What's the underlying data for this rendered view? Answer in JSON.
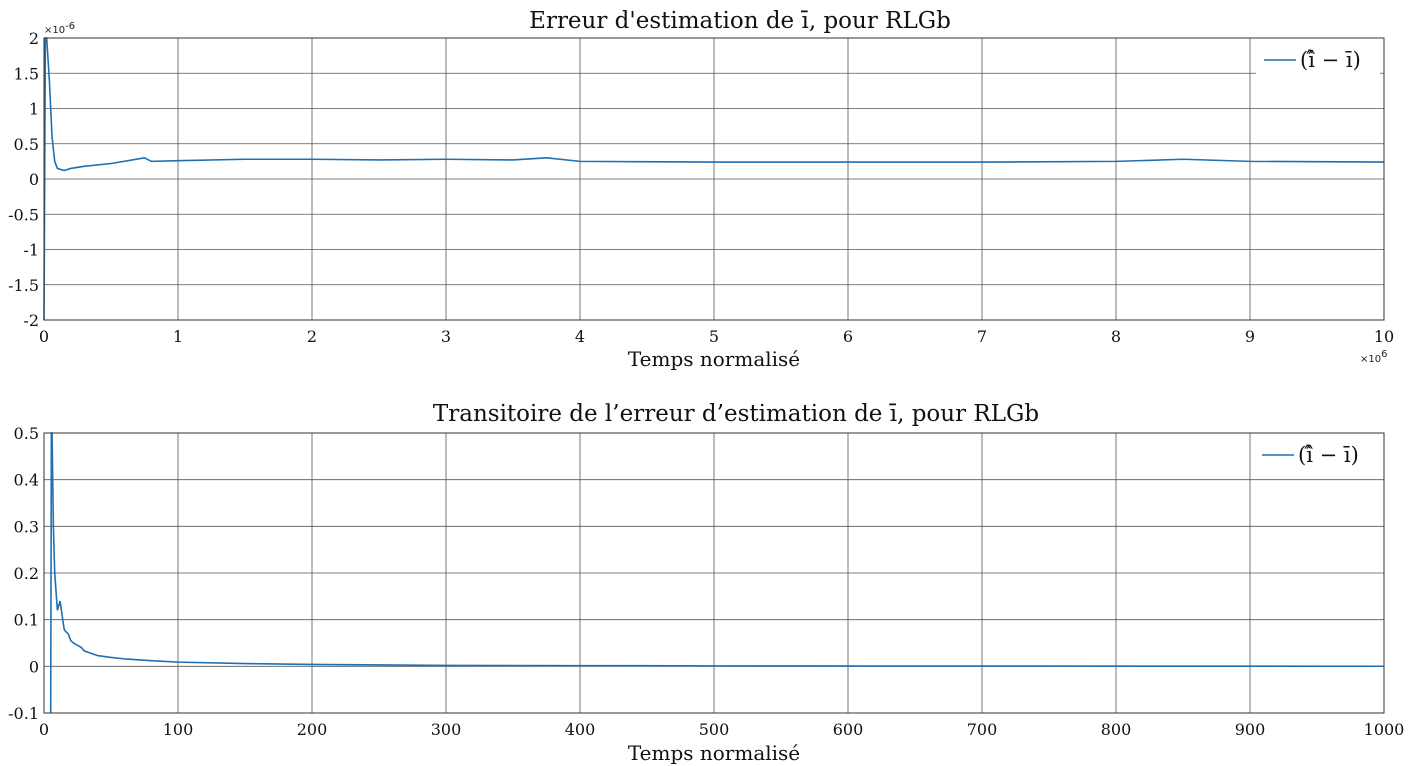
{
  "chart_data": [
    {
      "type": "line",
      "title": "Erreur d'estimation de ī, pour RLGb",
      "xlabel": "Temps normalisé",
      "ylabel": "",
      "x_exponent_label": "×10",
      "x_exponent_power": "6",
      "y_exponent_label": "×10",
      "y_exponent_power": "-6",
      "xlim": [
        0,
        10
      ],
      "ylim": [
        -2,
        2
      ],
      "xticks": [
        "0",
        "1",
        "2",
        "3",
        "4",
        "5",
        "6",
        "7",
        "8",
        "9",
        "10"
      ],
      "yticks": [
        "2",
        "1.5",
        "1",
        "0.5",
        "0",
        "-0.5",
        "-1",
        "-1.5",
        "-2"
      ],
      "grid": true,
      "legend": "top-right",
      "series": [
        {
          "name": "(î̂ − ī)",
          "color": "#1f6fb2",
          "x": [
            0,
            0.01,
            0.02,
            0.04,
            0.06,
            0.08,
            0.1,
            0.15,
            0.2,
            0.3,
            0.5,
            0.75,
            0.8,
            1,
            1.5,
            2,
            2.5,
            3,
            3.5,
            3.75,
            4,
            5,
            6,
            7,
            8,
            8.5,
            9,
            10
          ],
          "values": [
            -2,
            2,
            2,
            1.4,
            0.6,
            0.25,
            0.15,
            0.12,
            0.15,
            0.18,
            0.22,
            0.3,
            0.25,
            0.26,
            0.28,
            0.28,
            0.27,
            0.28,
            0.27,
            0.3,
            0.25,
            0.24,
            0.24,
            0.24,
            0.25,
            0.28,
            0.25,
            0.24
          ]
        }
      ]
    },
    {
      "type": "line",
      "title": "Transitoire de l’erreur d’estimation de ī, pour RLGb",
      "xlabel": "Temps normalisé",
      "ylabel": "",
      "xlim": [
        0,
        1000
      ],
      "ylim": [
        -0.1,
        0.5
      ],
      "xticks": [
        "0",
        "100",
        "200",
        "300",
        "400",
        "500",
        "600",
        "700",
        "800",
        "900",
        "1000"
      ],
      "yticks": [
        "0.5",
        "0.4",
        "0.3",
        "0.2",
        "0.1",
        "0",
        "-0.1"
      ],
      "grid": true,
      "legend": "top-right",
      "series": [
        {
          "name": "(î̂ − ī)",
          "color": "#1f6fb2",
          "x": [
            5,
            5.5,
            6,
            7,
            8,
            9,
            10,
            11,
            12,
            13,
            14,
            15,
            16,
            18,
            20,
            22,
            25,
            28,
            30,
            35,
            40,
            50,
            60,
            80,
            100,
            150,
            200,
            300,
            400,
            500,
            700,
            1000
          ],
          "values": [
            -0.1,
            0.5,
            0.5,
            0.3,
            0.2,
            0.16,
            0.12,
            0.13,
            0.14,
            0.12,
            0.1,
            0.08,
            0.075,
            0.07,
            0.055,
            0.05,
            0.045,
            0.04,
            0.033,
            0.028,
            0.023,
            0.019,
            0.016,
            0.012,
            0.009,
            0.006,
            0.004,
            0.002,
            0.0015,
            0.001,
            0.0005,
            0.0002
          ]
        }
      ]
    }
  ]
}
